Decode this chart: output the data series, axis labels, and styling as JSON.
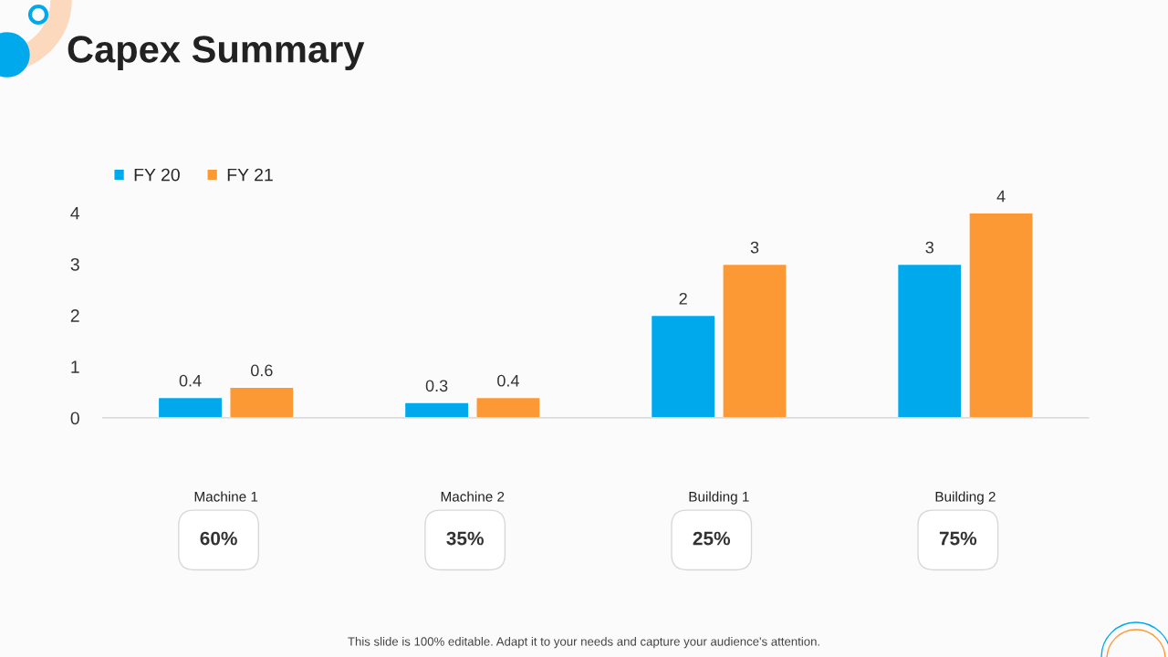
{
  "chart_data": {
    "type": "bar",
    "title": "Capex Summary",
    "categories": [
      "Machine 1",
      "Machine 2",
      "Building 1",
      "Building 2"
    ],
    "series": [
      {
        "name": "FY 20",
        "color": "#00a9ec",
        "values": [
          0.4,
          0.3,
          2,
          3
        ]
      },
      {
        "name": "FY 21",
        "color": "#fd9935",
        "values": [
          0.6,
          0.4,
          3,
          4
        ]
      }
    ],
    "ylim": [
      0,
      4
    ],
    "yticks": [
      0,
      1,
      2,
      3,
      4
    ],
    "grid": false,
    "legend": "top left",
    "data_labels": true,
    "annotations": [
      "60%",
      "35%",
      "25%",
      "75%",
      "This slide is 100% editable. Adapt it to your needs and capture your audience's attention."
    ]
  }
}
